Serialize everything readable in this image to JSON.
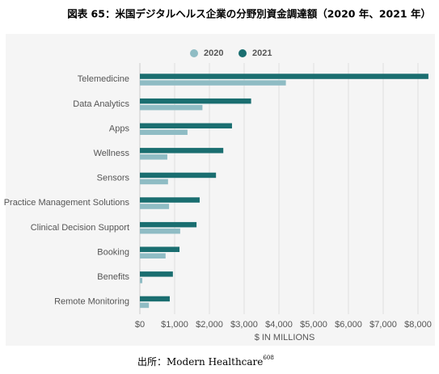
{
  "chart_data": {
    "type": "hbar",
    "title": "図表 65：米国デジタルヘルス企業の分野別資金調達額（2020 年、2021 年）",
    "categories": [
      "Telemedicine",
      "Data Analytics",
      "Apps",
      "Wellness",
      "Sensors",
      "Practice Management Solutions",
      "Clinical Decision Support",
      "Booking",
      "Benefits",
      "Remote Monitoring"
    ],
    "series": [
      {
        "name": "2020",
        "color": "#8fbcc4",
        "values": [
          4200,
          1800,
          1370,
          790,
          810,
          840,
          1160,
          740,
          70,
          260
        ]
      },
      {
        "name": "2021",
        "color": "#1a6e70",
        "values": [
          8300,
          3200,
          2650,
          2400,
          2190,
          1720,
          1630,
          1140,
          950,
          860
        ]
      }
    ],
    "xlim": [
      0,
      8500
    ],
    "xticks": [
      {
        "value": 0,
        "label": "$0"
      },
      {
        "value": 1000,
        "label": "$1,000"
      },
      {
        "value": 2000,
        "label": "$2,000"
      },
      {
        "value": 3000,
        "label": "$3,000"
      },
      {
        "value": 4000,
        "label": "$4,000"
      },
      {
        "value": 5000,
        "label": "$5,000"
      },
      {
        "value": 6000,
        "label": "$6,000"
      },
      {
        "value": 7000,
        "label": "$7,000"
      },
      {
        "value": 8000,
        "label": "$8,000"
      }
    ],
    "x_label": "$ IN MILLIONS",
    "grid": true,
    "legend": "top",
    "source": "出所：Modern Healthcare",
    "source_note": "608"
  }
}
